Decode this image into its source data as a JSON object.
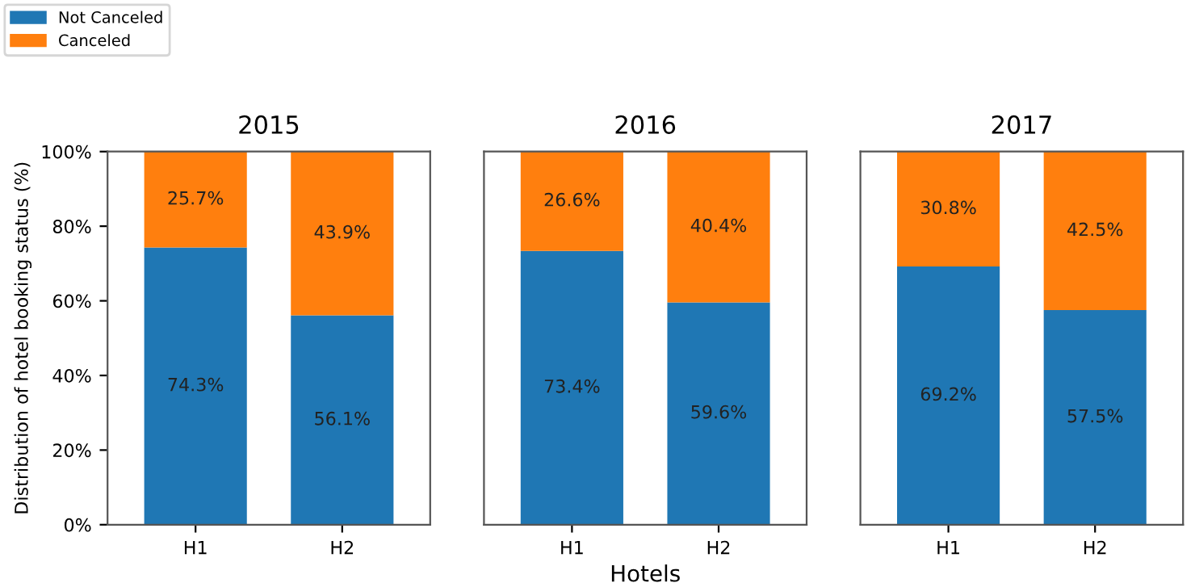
{
  "chart_data": [
    {
      "type": "bar",
      "stacked": true,
      "title": "2015",
      "ylabel": "Distribution of hotel booking status (%)",
      "categories": [
        "H1",
        "H2"
      ],
      "legend": "top left",
      "tick_labels": "xy",
      "ylim": [
        0,
        100
      ],
      "yticks": [
        {
          "value": 0,
          "label": "0%"
        },
        {
          "value": 20,
          "label": "20%"
        },
        {
          "value": 40,
          "label": "40%"
        },
        {
          "value": 60,
          "label": "60%"
        },
        {
          "value": 80,
          "label": "80%"
        },
        {
          "value": 100,
          "label": "100%"
        }
      ],
      "series": [
        {
          "name": "Not Canceled",
          "color": "#1f77b4",
          "values": [
            74.3,
            56.1
          ],
          "value_labels": [
            "74.3%",
            "56.1%"
          ]
        },
        {
          "name": "Canceled",
          "color": "#ff7f0e",
          "values": [
            25.7,
            43.9
          ],
          "value_labels": [
            "25.7%",
            "43.9%"
          ]
        }
      ]
    },
    {
      "type": "bar",
      "stacked": true,
      "title": "2016",
      "xlabel": "Hotels",
      "categories": [
        "H1",
        "H2"
      ],
      "tick_labels": "x",
      "ylim": [
        0,
        100
      ],
      "series": [
        {
          "color": "#1f77b4",
          "values": [
            73.4,
            59.6
          ],
          "value_labels": [
            "73.4%",
            "59.6%"
          ]
        },
        {
          "color": "#ff7f0e",
          "values": [
            26.6,
            40.4
          ],
          "value_labels": [
            "26.6%",
            "40.4%"
          ]
        }
      ]
    },
    {
      "type": "bar",
      "stacked": true,
      "title": "2017",
      "categories": [
        "H1",
        "H2"
      ],
      "tick_labels": "x",
      "ylim": [
        0,
        100
      ],
      "series": [
        {
          "color": "#1f77b4",
          "values": [
            69.2,
            57.5
          ],
          "value_labels": [
            "69.2%",
            "57.5%"
          ]
        },
        {
          "color": "#ff7f0e",
          "values": [
            30.8,
            42.5
          ],
          "value_labels": [
            "30.8%",
            "42.5%"
          ]
        }
      ]
    }
  ]
}
